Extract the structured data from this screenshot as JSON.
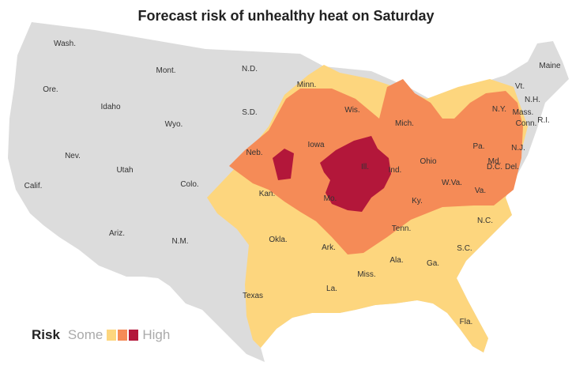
{
  "title": "Forecast risk of unhealthy heat on Saturday",
  "colors": {
    "land": "#dcdcdc",
    "border": "#ffffff",
    "some": "#fdd67e",
    "moderate": "#f58b57",
    "high": "#b3173a"
  },
  "legend": {
    "label": "Risk",
    "low": "Some",
    "high": "High"
  },
  "states": [
    "Wash.",
    "Ore.",
    "Calif.",
    "Idaho",
    "Nev.",
    "Mont.",
    "Wyo.",
    "Utah",
    "Ariz.",
    "Colo.",
    "N.M.",
    "N.D.",
    "S.D.",
    "Neb.",
    "Kan.",
    "Okla.",
    "Texas",
    "Minn.",
    "Iowa",
    "Mo.",
    "Ark.",
    "La.",
    "Wis.",
    "Ill.",
    "Miss.",
    "Mich.",
    "Ind.",
    "Ohio",
    "Ky.",
    "Tenn.",
    "Ala.",
    "Ga.",
    "Fla.",
    "S.C.",
    "N.C.",
    "Va.",
    "W.Va.",
    "Md.",
    "D.C.",
    "Del.",
    "Pa.",
    "N.J.",
    "N.Y.",
    "Conn.",
    "R.I.",
    "Mass.",
    "Vt.",
    "N.H.",
    "Maine"
  ]
}
